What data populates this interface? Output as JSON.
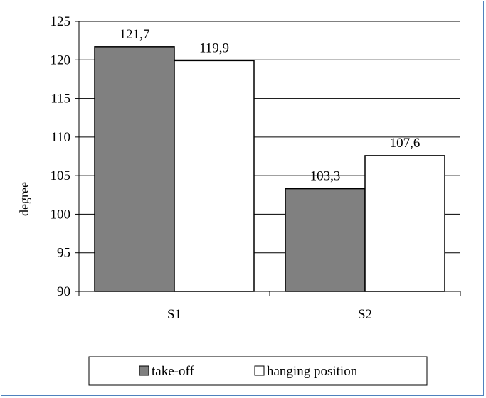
{
  "chart_data": {
    "type": "bar",
    "title": "",
    "xlabel": "",
    "ylabel": "degree",
    "ylim": [
      90,
      125
    ],
    "yticks": [
      90,
      95,
      100,
      105,
      110,
      115,
      120,
      125
    ],
    "grid": true,
    "legend_position": "bottom",
    "categories": [
      "S1",
      "S2"
    ],
    "series": [
      {
        "name": "take-off",
        "values": [
          121.7,
          103.3
        ],
        "labels": [
          "121,7",
          "103,3"
        ],
        "color": "#808080"
      },
      {
        "name": "hanging position",
        "values": [
          119.9,
          107.6
        ],
        "labels": [
          "119,9",
          "107,6"
        ],
        "color": "#ffffff"
      }
    ]
  },
  "colors": {
    "frame_border": "#4f81bd",
    "gridline": "#000000",
    "bar_outline": "#000000"
  }
}
